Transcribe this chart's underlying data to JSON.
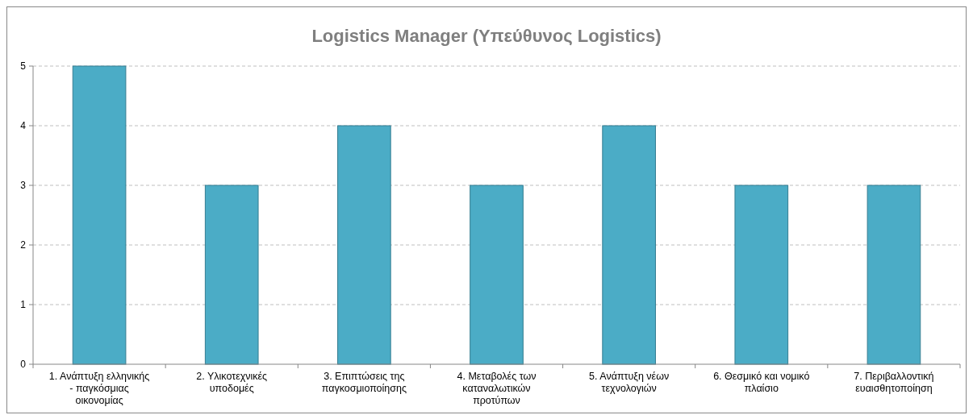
{
  "chart_data": {
    "type": "bar",
    "title": "Logistics Manager (Υπεύθυνος Logistics)",
    "categories": [
      "1. Ανάπτυξη ελληνικής - παγκόσμιας οικονομίας",
      "2. Υλικοτεχνικές υποδομές",
      "3. Επιπτώσεις της παγκοσμιοποίησης",
      "4. Μεταβολές των καταναλωτικών προτύπων",
      "5. Ανάπτυξη νέων τεχνολογιών",
      "6. Θεσμικό και νομικό πλαίσιο",
      "7. Περιβαλλοντική ευαισθητοποίηση"
    ],
    "values": [
      5,
      3,
      4,
      3,
      4,
      3,
      3
    ],
    "color": "#4bacc6",
    "ylim": [
      0,
      5
    ],
    "yticks": [
      0,
      1,
      2,
      3,
      4,
      5
    ],
    "grid": "y"
  }
}
